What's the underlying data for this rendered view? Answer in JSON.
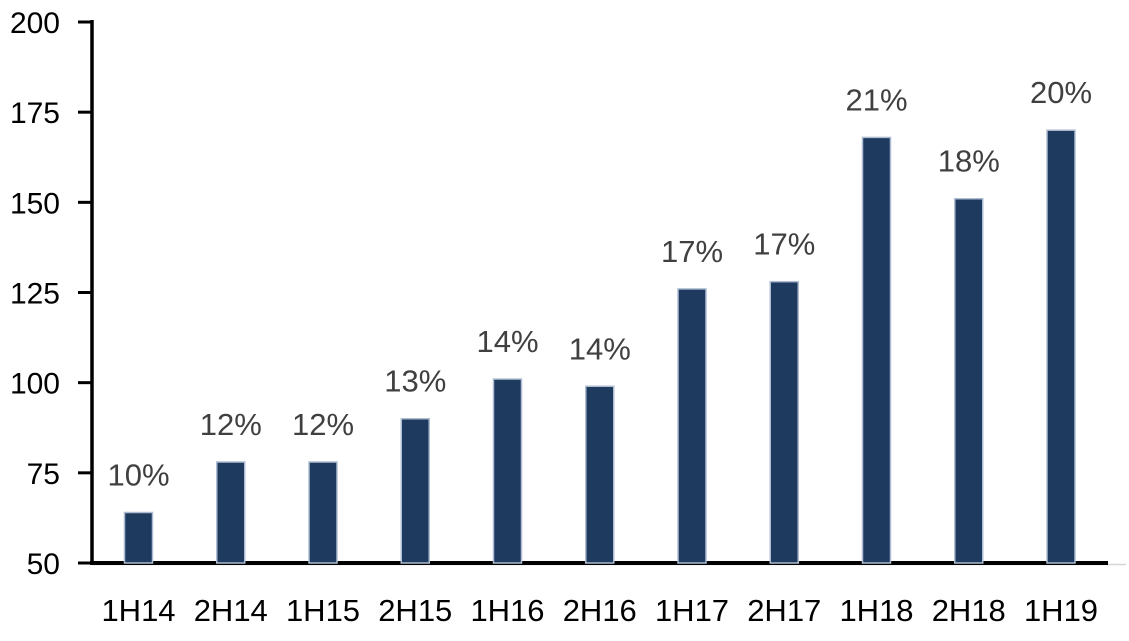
{
  "chart_data": {
    "type": "bar",
    "title": "",
    "xlabel": "",
    "ylabel": "",
    "categories": [
      "1H14",
      "2H14",
      "1H15",
      "2H15",
      "1H16",
      "2H16",
      "1H17",
      "2H17",
      "1H18",
      "2H18",
      "1H19"
    ],
    "values": [
      64,
      78,
      78,
      90,
      101,
      99,
      126,
      128,
      168,
      151,
      170
    ],
    "bar_labels": [
      "10%",
      "12%",
      "12%",
      "13%",
      "14%",
      "14%",
      "17%",
      "17%",
      "21%",
      "18%",
      "20%"
    ],
    "ylim": [
      50,
      200
    ],
    "yticks": [
      50,
      75,
      100,
      125,
      150,
      175,
      200
    ],
    "grid": false,
    "legend": "none",
    "colors": {
      "bar_fill": "#1F3A5F",
      "bar_border": "#AEBDD1",
      "data_label": "#404040",
      "axis_line": "#000000",
      "tick_label": "#000000",
      "baseline_extension": "#D6D6D6",
      "background": "#FFFFFF"
    }
  }
}
